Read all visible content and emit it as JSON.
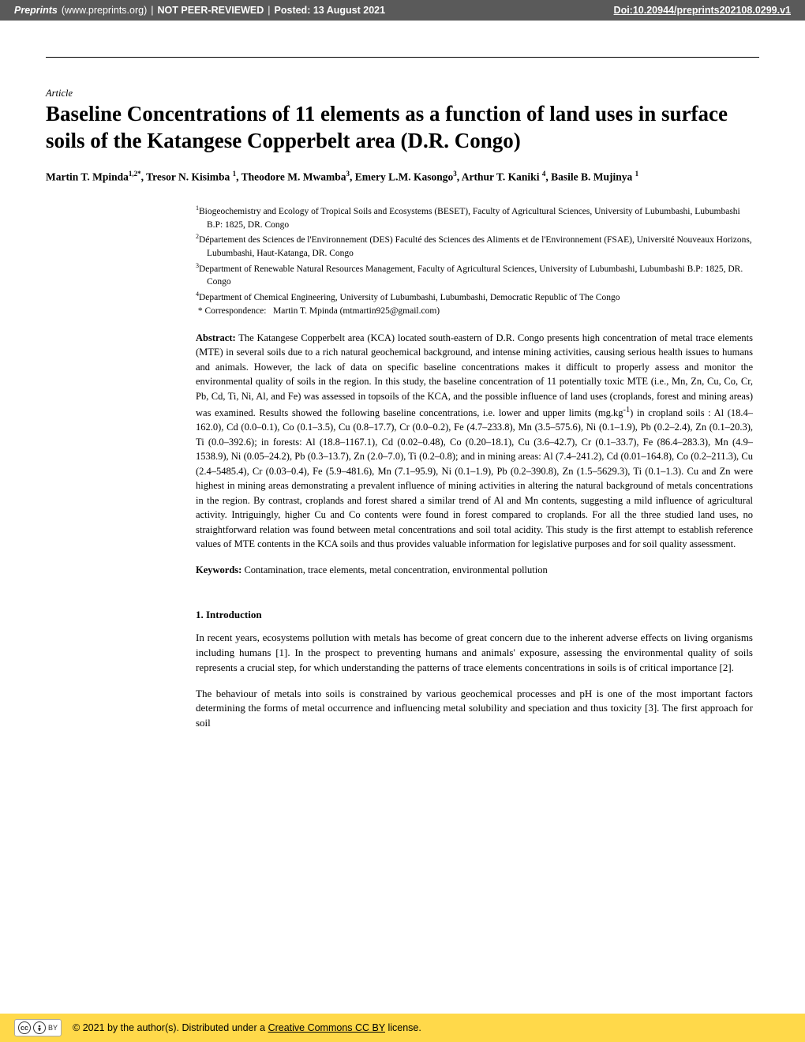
{
  "banner": {
    "preprints_label": "Preprints",
    "site": "(www.preprints.org)",
    "sep1": "|",
    "not_reviewed": "NOT PEER-REVIEWED",
    "sep2": "|",
    "posted": "Posted: 13 August 2021",
    "doi": "Doi:10.20944/preprints202108.0299.v1"
  },
  "article_label": "Article",
  "title": "Baseline Concentrations of 11 elements as a function of land uses in surface soils of the Katangese Copperbelt area (D.R. Congo)",
  "authors_html": "Martin T. Mpinda<sup>1,2*</sup>, Tresor N. Kisimba <sup>1</sup>, Theodore M. Mwamba<sup>3</sup>, Emery L.M. Kasongo<sup>3</sup>, Arthur T. Kaniki <sup>4</sup>, Basile B. Mujinya <sup>1</sup>",
  "affiliations": [
    "<sup>1</sup>Biogeochemistry and Ecology of Tropical Soils and Ecosystems (BESET), Faculty of Agricultural Sciences, University of Lubumbashi, Lubumbashi B.P: 1825, DR. Congo",
    "<sup>2</sup>Département des Sciences de l'Environnement (DES) Faculté des Sciences des Aliments et de l'Environnement (FSAE), Université Nouveaux Horizons, Lubumbashi, Haut-Katanga, DR. Congo",
    "<sup>3</sup>Department of Renewable Natural Resources Management, Faculty of Agricultural Sciences, University of Lubumbashi, Lubumbashi B.P: 1825, DR. Congo",
    "<sup>4</sup>Department of Chemical Engineering, University of Lubumbashi, Lubumbashi, Democratic Republic of The Congo",
    "&nbsp;* Correspondence:&nbsp;&nbsp;&nbsp;Martin T. Mpinda (mtmartin925@gmail.com)"
  ],
  "abstract_label": "Abstract:",
  "abstract_text": " The Katangese Copperbelt area (KCA) located south-eastern of D.R. Congo presents high concentration of metal trace elements (MTE) in several soils due to a rich natural geochemical background, and intense mining activities, causing serious health issues to humans and animals. However, the lack of data on specific baseline concentrations makes it difficult to properly assess and monitor the environmental quality of soils in the region. In this study, the baseline concentration of 11 potentially toxic MTE (i.e., Mn, Zn, Cu, Co, Cr, Pb, Cd, Ti, Ni, Al, and Fe) was assessed in topsoils of the KCA, and the possible influence of land uses (croplands, forest and mining areas) was examined. Results showed the following baseline concentrations, i.e. lower and upper limits (mg.kg<sup>-1</sup>) in cropland soils : Al (18.4–162.0), Cd (0.0–0.1), Co (0.1–3.5), Cu (0.8–17.7), Cr (0.0–0.2), Fe (4.7–233.8), Mn (3.5–575.6), Ni (0.1–1.9), Pb (0.2–2.4), Zn (0.1–20.3), Ti (0.0–392.6); in forests: Al (18.8–1167.1), Cd (0.02–0.48), Co (0.20–18.1), Cu (3.6–42.7), Cr (0.1–33.7), Fe (86.4–283.3), Mn (4.9–1538.9), Ni (0.05–24.2), Pb (0.3–13.7), Zn (2.0–7.0), Ti (0.2–0.8); and in mining areas: Al (7.4–241.2), Cd (0.01–164.8), Co (0.2–211.3), Cu (2.4–5485.4), Cr (0.03–0.4), Fe (5.9–481.6), Mn (7.1–95.9), Ni (0.1–1.9), Pb (0.2–390.8), Zn (1.5–5629.3), Ti (0.1–1.3). Cu and Zn were highest in mining areas demonstrating a prevalent influence of mining activities in altering the natural background of metals concentrations in the region. By contrast, croplands and forest shared a similar trend of Al and Mn contents, suggesting a mild influence of agricultural activity. Intriguingly, higher Cu and Co contents were found in forest compared to croplands. For all the three studied land uses, no straightforward relation was found between metal concentrations and soil total acidity. This study is the first attempt to establish reference values of MTE contents in the KCA soils and thus provides valuable information for legislative purposes and for soil quality assessment.",
  "keywords_label": "Keywords:",
  "keywords_text": " Contamination, trace elements, metal concentration, environmental pollution",
  "section_heading": "1. Introduction",
  "para1": "In recent years, ecosystems pollution with metals has become of great concern due to the inherent adverse effects on living organisms including humans [1]. In the prospect to preventing humans and animals' exposure, assessing the environmental quality of soils represents a crucial step, for which understanding the patterns of trace elements concentrations in soils is of critical importance [2].",
  "para2": "The behaviour of metals into soils is constrained by various geochemical processes and pH is one of the most important factors determining the forms of metal occurrence and influencing metal solubility and speciation and thus toxicity [3]. The first approach for soil",
  "footer": {
    "copyright_prefix": "© 2021 by the author(s). Distributed under a ",
    "license_link": "Creative Commons CC BY",
    "copyright_suffix": " license.",
    "cc": "cc",
    "by": "BY"
  }
}
